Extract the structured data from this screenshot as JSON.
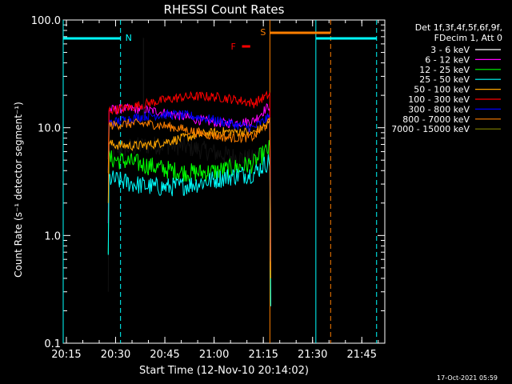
{
  "chart_data": {
    "type": "line",
    "title": "RHESSI Count Rates",
    "xlabel": "Start Time (12-Nov-10 20:14:02)",
    "ylabel": "Count Rate (s⁻¹ detector segment⁻¹)",
    "yscale": "log",
    "ylim": [
      0.1,
      100.0
    ],
    "xlim": [
      "20:14:02",
      "21:52:00"
    ],
    "x_ticks": [
      "20:15",
      "20:30",
      "20:45",
      "21:00",
      "21:15",
      "21:30",
      "21:45"
    ],
    "y_ticks": [
      "0.1",
      "1.0",
      "10.0",
      "100.0"
    ],
    "legend_header": [
      "Det 1f,3f,4f,5f,6f,9f,",
      "FDecim 1, Att 0"
    ],
    "legend_position": "right",
    "series": [
      {
        "name": "3 - 6 keV",
        "color": "#000000",
        "level": 6.0
      },
      {
        "name": "6 - 12 keV",
        "color": "#ff00ff",
        "level": 13.0
      },
      {
        "name": "12 - 25 keV",
        "color": "#00ff00",
        "level": 4.5
      },
      {
        "name": "25 - 50 keV",
        "color": "#00ffff",
        "level": 3.3
      },
      {
        "name": "50 - 100 keV",
        "color": "#ffa500",
        "level": 8.0
      },
      {
        "name": "100 - 300 keV",
        "color": "#ff0000",
        "level": 17.0
      },
      {
        "name": "300 - 800 keV",
        "color": "#0000ff",
        "level": 11.5
      },
      {
        "name": "800 - 7000 keV",
        "color": "#ff7f00",
        "level": 9.5
      },
      {
        "name": "7000 - 15000 keV",
        "color": "#808000",
        "level": null
      }
    ],
    "data_start": "20:28:00",
    "data_end": "21:17:00",
    "annotations": {
      "N": {
        "label": "N",
        "color": "#00ffff",
        "bars": [
          [
            "20:14:02",
            "20:31:30"
          ]
        ],
        "marker_times": [
          "20:14:02",
          "20:31:30"
        ]
      },
      "S": {
        "label": "S",
        "color": "#ff7f00",
        "bars": [
          [
            "21:17:00",
            "21:35:30"
          ]
        ],
        "marker_times": [
          "21:17:00",
          "21:35:30"
        ]
      },
      "F": {
        "label": "F",
        "color": "#ff0000",
        "bars": [
          [
            "21:08:30",
            "21:11:00"
          ]
        ]
      },
      "orbit": {
        "color": "#00ffff",
        "bars": [
          [
            "21:31:00",
            "21:49:30"
          ]
        ],
        "marker_times": [
          "21:31:00",
          "21:49:30"
        ]
      }
    }
  },
  "timestamp": "17-Oct-2021 05:59"
}
